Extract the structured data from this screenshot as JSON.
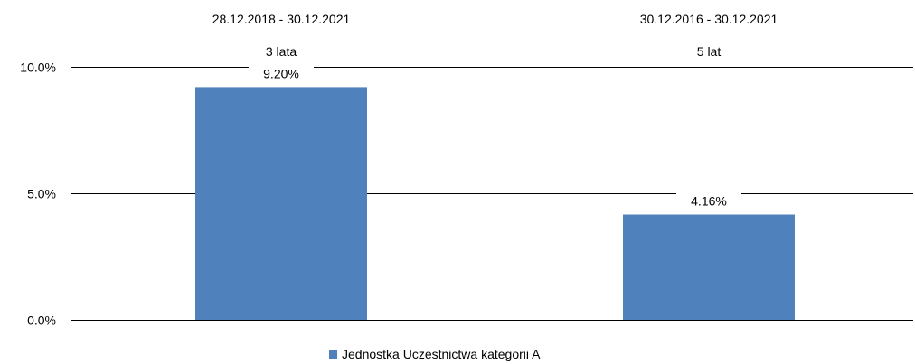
{
  "chart_data": {
    "type": "bar",
    "categories": [
      "3 lata",
      "5 lat"
    ],
    "periods": [
      "28.12.2018 - 30.12.2021",
      "30.12.2016 - 30.12.2021"
    ],
    "series": [
      {
        "name": "Jednostka Uczestnictwa kategorii A",
        "values": [
          9.2,
          4.16
        ],
        "value_labels": [
          "9.20%",
          "4.16%"
        ],
        "color": "#4F81BD"
      }
    ],
    "y_ticks": [
      {
        "value": 0,
        "label": "0.0%"
      },
      {
        "value": 5,
        "label": "5.0%"
      },
      {
        "value": 10,
        "label": "10.0%"
      }
    ],
    "ylim": [
      0,
      10
    ],
    "grid": true,
    "legend_position": "bottom-center"
  }
}
